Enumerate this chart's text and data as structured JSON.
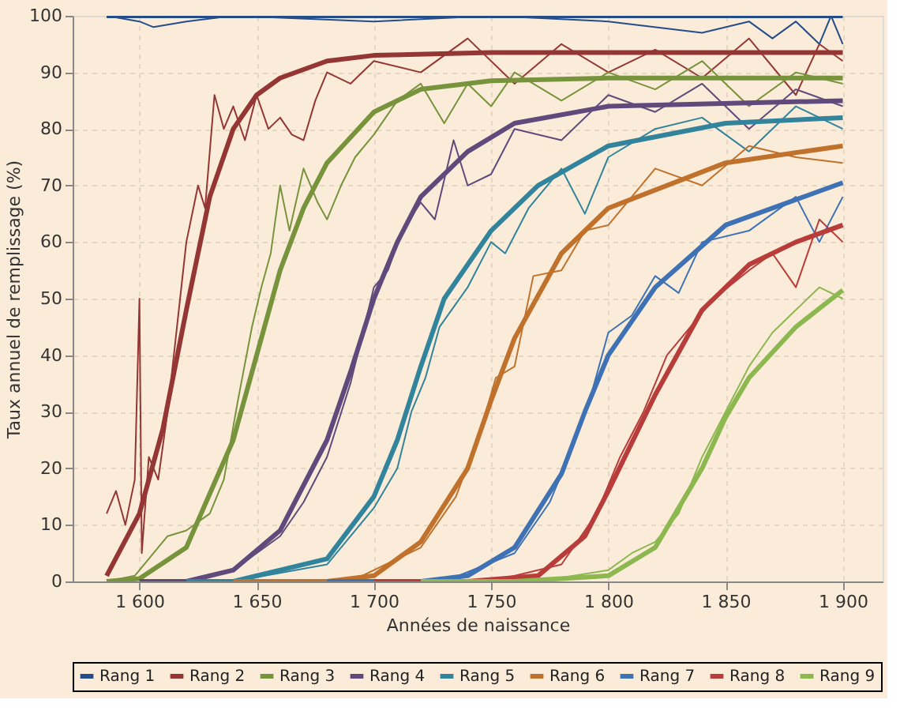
{
  "chart_data": {
    "type": "line",
    "xlabel": "Années de naissance",
    "ylabel": "Taux annuel de remplissage (%)",
    "xlim": [
      1571.5,
      1917
    ],
    "ylim": [
      0,
      100
    ],
    "xticks": [
      {
        "value": 1600,
        "label": "1 600"
      },
      {
        "value": 1650,
        "label": "1 650"
      },
      {
        "value": 1700,
        "label": "1 700"
      },
      {
        "value": 1750,
        "label": "1 750"
      },
      {
        "value": 1800,
        "label": "1 800"
      },
      {
        "value": 1850,
        "label": "1 850"
      },
      {
        "value": 1900,
        "label": "1 900"
      }
    ],
    "yticks": [
      0,
      10,
      20,
      30,
      40,
      50,
      60,
      70,
      80,
      90,
      100
    ],
    "grid": true,
    "legend": "bottom",
    "series": [
      {
        "color": "#254d8a",
        "x": [
          1586,
          1600,
          1606,
          1620,
          1640,
          1700,
          1750,
          1800,
          1840,
          1860,
          1870,
          1880,
          1890,
          1895,
          1900
        ],
        "values": [
          100,
          99,
          98,
          99,
          100,
          99,
          100,
          99,
          97,
          99,
          96,
          99,
          95,
          100,
          95
        ]
      },
      {
        "color": "#943634",
        "x": [
          1586,
          1590,
          1594,
          1598,
          1600,
          1601,
          1604,
          1608,
          1612,
          1616,
          1620,
          1625,
          1628,
          1632,
          1636,
          1640,
          1645,
          1650,
          1655,
          1660,
          1665,
          1670,
          1675,
          1680,
          1690,
          1700,
          1720,
          1740,
          1760,
          1780,
          1800,
          1820,
          1840,
          1860,
          1880,
          1890,
          1900
        ],
        "values": [
          12,
          16,
          10,
          18,
          50,
          5,
          22,
          18,
          30,
          45,
          60,
          70,
          66,
          86,
          80,
          84,
          78,
          86,
          80,
          82,
          79,
          78,
          85,
          90,
          88,
          92,
          90,
          96,
          88,
          95,
          90,
          94,
          89,
          96,
          86,
          95,
          92
        ]
      },
      {
        "color": "#77933c",
        "x": [
          1586,
          1598,
          1604,
          1612,
          1620,
          1630,
          1636,
          1642,
          1648,
          1652,
          1656,
          1660,
          1664,
          1670,
          1676,
          1680,
          1686,
          1692,
          1700,
          1710,
          1720,
          1730,
          1740,
          1750,
          1760,
          1780,
          1800,
          1820,
          1840,
          1860,
          1880,
          1900
        ],
        "values": [
          0,
          1,
          4,
          8,
          9,
          12,
          18,
          32,
          45,
          52,
          58,
          70,
          62,
          73,
          67,
          64,
          70,
          75,
          79,
          85,
          88,
          81,
          88,
          84,
          90,
          85,
          90,
          87,
          92,
          84,
          90,
          88
        ]
      },
      {
        "color": "#604a7b",
        "x": [
          1620,
          1640,
          1660,
          1670,
          1680,
          1690,
          1700,
          1706,
          1712,
          1720,
          1726,
          1734,
          1740,
          1750,
          1760,
          1780,
          1800,
          1820,
          1840,
          1860,
          1880,
          1900
        ],
        "values": [
          0,
          2,
          8,
          14,
          22,
          35,
          52,
          55,
          62,
          67,
          64,
          78,
          70,
          72,
          80,
          78,
          86,
          83,
          88,
          80,
          87,
          84
        ]
      },
      {
        "color": "#31849b",
        "x": [
          1640,
          1680,
          1700,
          1710,
          1716,
          1722,
          1728,
          1740,
          1750,
          1756,
          1766,
          1780,
          1790,
          1800,
          1820,
          1840,
          1860,
          1880,
          1900
        ],
        "values": [
          0,
          3,
          13,
          20,
          30,
          36,
          45,
          52,
          60,
          58,
          66,
          73,
          65,
          75,
          80,
          82,
          76,
          84,
          80
        ]
      },
      {
        "color": "#c0712b",
        "x": [
          1690,
          1720,
          1735,
          1745,
          1752,
          1760,
          1768,
          1780,
          1790,
          1800,
          1820,
          1840,
          1860,
          1880,
          1900
        ],
        "values": [
          0,
          6,
          15,
          26,
          36,
          38,
          54,
          55,
          62,
          63,
          73,
          70,
          77,
          75,
          74
        ]
      },
      {
        "color": "#3e72b4",
        "x": [
          1730,
          1760,
          1775,
          1785,
          1792,
          1800,
          1810,
          1820,
          1830,
          1840,
          1860,
          1880,
          1890,
          1900
        ],
        "values": [
          0,
          5,
          14,
          24,
          32,
          44,
          47,
          54,
          51,
          60,
          62,
          68,
          60,
          68
        ]
      },
      {
        "color": "#b83c3a",
        "x": [
          1750,
          1780,
          1795,
          1805,
          1815,
          1825,
          1835,
          1845,
          1860,
          1870,
          1880,
          1890,
          1900
        ],
        "values": [
          0,
          3,
          12,
          22,
          30,
          40,
          45,
          50,
          55,
          58,
          52,
          64,
          60
        ]
      },
      {
        "color": "#8db850",
        "x": [
          1770,
          1800,
          1810,
          1820,
          1830,
          1840,
          1850,
          1860,
          1870,
          1880,
          1890,
          1900
        ],
        "values": [
          0,
          2,
          5,
          7,
          12,
          22,
          30,
          38,
          44,
          48,
          52,
          50
        ]
      },
      {
        "name": "Rang 1",
        "color": "#254d8a",
        "x": [
          1586,
          1650,
          1700,
          1750,
          1800,
          1850,
          1900
        ],
        "values": [
          100,
          100,
          100,
          100,
          100,
          100,
          100
        ]
      },
      {
        "name": "Rang 2",
        "color": "#943634",
        "x": [
          1586,
          1600,
          1610,
          1620,
          1625,
          1630,
          1640,
          1650,
          1660,
          1680,
          1700,
          1750,
          1900
        ],
        "values": [
          1,
          12,
          27,
          48,
          58,
          68,
          80,
          86,
          89,
          92,
          93,
          93.5,
          93.5
        ]
      },
      {
        "name": "Rang 3",
        "color": "#77933c",
        "x": [
          1586,
          1600,
          1620,
          1640,
          1650,
          1660,
          1670,
          1680,
          1700,
          1720,
          1750,
          1800,
          1900
        ],
        "values": [
          0,
          0.5,
          6,
          25,
          40,
          55,
          66,
          74,
          83,
          87,
          88.5,
          89,
          89
        ]
      },
      {
        "name": "Rang 4",
        "color": "#604a7b",
        "x": [
          1600,
          1620,
          1640,
          1660,
          1680,
          1690,
          1700,
          1710,
          1720,
          1740,
          1760,
          1800,
          1900
        ],
        "values": [
          0,
          0,
          2,
          9,
          25,
          37,
          50,
          60,
          68,
          76,
          81,
          84,
          85
        ]
      },
      {
        "name": "Rang 5",
        "color": "#31849b",
        "x": [
          1620,
          1640,
          1680,
          1700,
          1710,
          1720,
          1730,
          1750,
          1770,
          1800,
          1850,
          1900
        ],
        "values": [
          0,
          0,
          4,
          15,
          25,
          38,
          50,
          62,
          70,
          77,
          81,
          82
        ]
      },
      {
        "name": "Rang 6",
        "color": "#c0712b",
        "x": [
          1640,
          1680,
          1700,
          1720,
          1740,
          1750,
          1760,
          1780,
          1800,
          1850,
          1900
        ],
        "values": [
          0,
          0,
          1,
          7,
          20,
          32,
          43,
          58,
          66,
          74,
          77
        ]
      },
      {
        "name": "Rang 7",
        "color": "#3e72b4",
        "x": [
          1680,
          1720,
          1740,
          1760,
          1780,
          1790,
          1800,
          1820,
          1850,
          1900
        ],
        "values": [
          0,
          0,
          1,
          6,
          19,
          30,
          40,
          52,
          63,
          70.5
        ]
      },
      {
        "name": "Rang 8",
        "color": "#b83c3a",
        "x": [
          1700,
          1740,
          1770,
          1790,
          1800,
          1820,
          1840,
          1860,
          1880,
          1900
        ],
        "values": [
          0,
          0,
          1,
          8,
          16,
          33,
          48,
          56,
          60,
          63
        ]
      },
      {
        "name": "Rang 9",
        "color": "#8db850",
        "x": [
          1720,
          1760,
          1800,
          1820,
          1840,
          1850,
          1860,
          1880,
          1900
        ],
        "values": [
          0,
          0,
          1,
          6,
          20,
          29,
          36,
          45,
          51.5
        ]
      }
    ]
  }
}
